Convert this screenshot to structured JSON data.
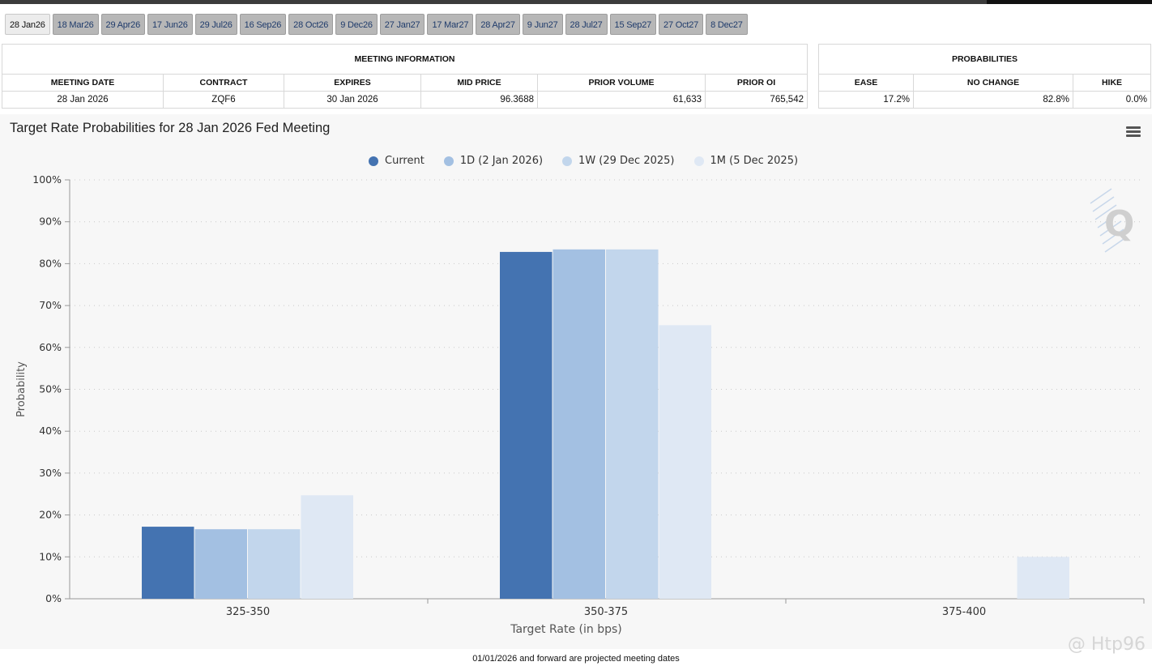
{
  "tabs": [
    "28 Jan26",
    "18 Mar26",
    "29 Apr26",
    "17 Jun26",
    "29 Jul26",
    "16 Sep26",
    "28 Oct26",
    "9 Dec26",
    "27 Jan27",
    "17 Mar27",
    "28 Apr27",
    "9 Jun27",
    "28 Jul27",
    "15 Sep27",
    "27 Oct27",
    "8 Dec27"
  ],
  "meeting_info": {
    "heading": "MEETING INFORMATION",
    "columns": [
      "MEETING DATE",
      "CONTRACT",
      "EXPIRES",
      "MID PRICE",
      "PRIOR VOLUME",
      "PRIOR OI"
    ],
    "values": [
      "28 Jan 2026",
      "ZQF6",
      "30 Jan 2026",
      "96.3688",
      "61,633",
      "765,542"
    ]
  },
  "probabilities": {
    "heading": "PROBABILITIES",
    "columns": [
      "EASE",
      "NO CHANGE",
      "HIKE"
    ],
    "values": [
      "17.2%",
      "82.8%",
      "0.0%"
    ]
  },
  "chart_data": {
    "type": "bar",
    "title": "Target Rate Probabilities for 28 Jan 2026 Fed Meeting",
    "xlabel": "Target Rate (in bps)",
    "ylabel": "Probability",
    "categories": [
      "325-350",
      "350-375",
      "375-400"
    ],
    "ylim": [
      0,
      100
    ],
    "yticks": [
      "0%",
      "10%",
      "20%",
      "30%",
      "40%",
      "50%",
      "60%",
      "70%",
      "80%",
      "90%",
      "100%"
    ],
    "grid": true,
    "legend": "top-center",
    "series": [
      {
        "name": "Current",
        "color": "#4473b1",
        "values": [
          17.2,
          82.8,
          0
        ]
      },
      {
        "name": "1D (2 Jan 2026)",
        "color": "#a3c0e2",
        "values": [
          16.6,
          83.4,
          0
        ]
      },
      {
        "name": "1W (29 Dec 2025)",
        "color": "#c2d6ec",
        "values": [
          16.6,
          83.4,
          0
        ]
      },
      {
        "name": "1M (5 Dec 2025)",
        "color": "#dfe8f4",
        "values": [
          24.7,
          65.3,
          10.0
        ]
      }
    ]
  },
  "footnote": "01/01/2026 and forward are projected meeting dates",
  "watermark": "@ Htp96"
}
